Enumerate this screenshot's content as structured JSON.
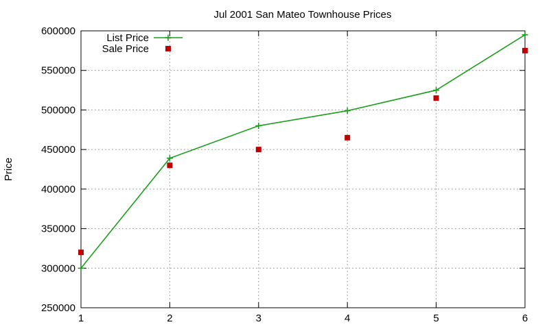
{
  "chart_data": {
    "type": "line",
    "title": "Jul 2001 San Mateo Townhouse Prices",
    "xlabel": "",
    "ylabel": "Price",
    "xlim": [
      1,
      6
    ],
    "ylim": [
      250000,
      600000
    ],
    "x_ticks": [
      1,
      2,
      3,
      4,
      5,
      6
    ],
    "y_ticks": [
      250000,
      300000,
      350000,
      400000,
      450000,
      500000,
      550000,
      600000
    ],
    "grid": true,
    "legend_position": "top-left",
    "x": [
      1,
      2,
      3,
      4,
      5,
      6
    ],
    "series": [
      {
        "name": "List Price",
        "style": "linespoints",
        "marker": "plus",
        "color": "#1a9e1a",
        "values": [
          300000,
          439000,
          480000,
          499000,
          525000,
          595000
        ]
      },
      {
        "name": "Sale Price",
        "style": "points",
        "marker": "square",
        "color": "#c00000",
        "values": [
          320000,
          430000,
          450000,
          465000,
          515000,
          575000
        ]
      }
    ]
  }
}
